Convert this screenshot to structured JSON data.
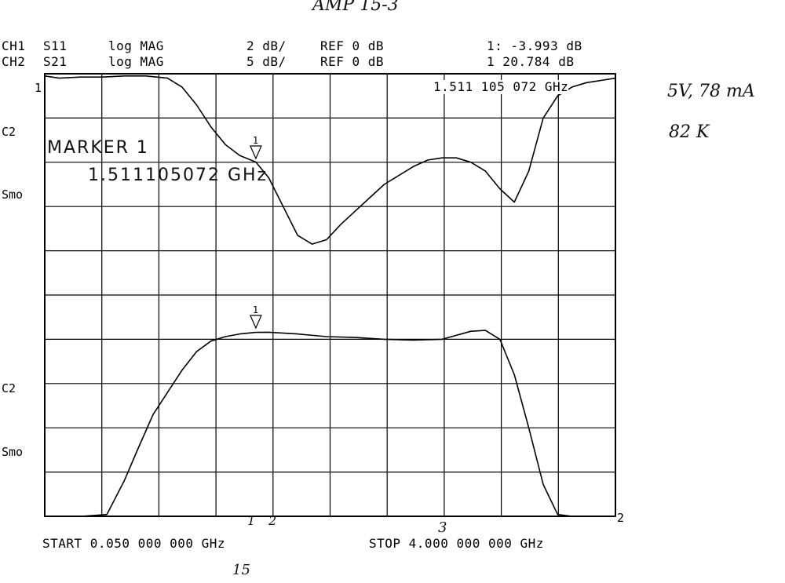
{
  "title_handwritten": "AMP 15-3",
  "header": {
    "ch1": {
      "name": "CH1",
      "param": "S11",
      "format": "log MAG",
      "scale": "2 dB/",
      "ref": "REF 0 dB",
      "marker_value": "1: -3.993 dB"
    },
    "ch2": {
      "name": "CH2",
      "param": "S21",
      "format": "log MAG",
      "scale": "5 dB/",
      "ref": "REF 0 dB",
      "marker_value": "1 20.784 dB"
    }
  },
  "marker_freq_readout": "1.511 105 072 GHz",
  "marker_box": {
    "label": "MARKER 1",
    "freq": "1.511105072 GHz"
  },
  "side_labels": {
    "top": {
      "c2": "C2",
      "smo": "Smo",
      "ref_pos": "1"
    },
    "bottom": {
      "c2": "C2",
      "smo": "Smo",
      "ref_pos": "2"
    }
  },
  "footer": {
    "start": "START 0.050 000 000 GHz",
    "stop": "STOP 4.000 000 000 GHz"
  },
  "handwritten_notes": {
    "bias": "5V, 78 mA",
    "temp": "82 K",
    "axis_marks": [
      "1",
      "2",
      "3"
    ],
    "bottom_note": "15"
  },
  "colors": {
    "trace": "#000000",
    "grid": "#000000",
    "background": "#ffffff"
  },
  "chart_data": {
    "type": "line",
    "x_unit": "GHz",
    "xlim": [
      0.05,
      4.0
    ],
    "grid": {
      "divisions_x": 10,
      "divisions_y": 10
    },
    "marker": {
      "label": "1",
      "x": 1.511
    },
    "series": [
      {
        "name": "S11",
        "scale_db_per_div": 2,
        "ref_db": 0,
        "ref_division_from_top": 0,
        "x": [
          0.05,
          0.15,
          0.3,
          0.45,
          0.6,
          0.75,
          0.9,
          1.0,
          1.1,
          1.2,
          1.3,
          1.4,
          1.511,
          1.6,
          1.7,
          1.8,
          1.9,
          2.0,
          2.1,
          2.2,
          2.3,
          2.4,
          2.5,
          2.6,
          2.7,
          2.8,
          2.9,
          3.0,
          3.1,
          3.2,
          3.3,
          3.4,
          3.5,
          3.6,
          3.7,
          3.8,
          3.9,
          4.0
        ],
        "y": [
          -0.1,
          -0.2,
          -0.15,
          -0.15,
          -0.1,
          -0.1,
          -0.2,
          -0.6,
          -1.4,
          -2.4,
          -3.2,
          -3.7,
          -3.99,
          -4.7,
          -6.0,
          -7.3,
          -7.7,
          -7.5,
          -6.8,
          -6.2,
          -5.6,
          -5.0,
          -4.6,
          -4.2,
          -3.9,
          -3.8,
          -3.8,
          -4.0,
          -4.4,
          -5.2,
          -5.8,
          -4.4,
          -2.0,
          -1.0,
          -0.6,
          -0.4,
          -0.3,
          -0.2
        ]
      },
      {
        "name": "S21",
        "scale_db_per_div": 5,
        "ref_db": 0,
        "ref_division_from_top": 10,
        "x": [
          0.05,
          0.3,
          0.48,
          0.6,
          0.7,
          0.8,
          0.9,
          1.0,
          1.1,
          1.2,
          1.3,
          1.4,
          1.511,
          1.6,
          1.8,
          2.0,
          2.2,
          2.4,
          2.6,
          2.8,
          3.0,
          3.1,
          3.2,
          3.3,
          3.4,
          3.5,
          3.6,
          3.7,
          3.8,
          3.9,
          4.0
        ],
        "y": [
          0.0,
          0.0,
          0.2,
          4.0,
          7.8,
          11.5,
          14.0,
          16.5,
          18.6,
          19.8,
          20.3,
          20.6,
          20.78,
          20.8,
          20.6,
          20.3,
          20.2,
          20.0,
          19.9,
          20.0,
          20.9,
          21.0,
          20.0,
          16.0,
          10.0,
          3.6,
          0.2,
          0.0,
          0.0,
          0.0,
          0.0
        ]
      }
    ]
  }
}
